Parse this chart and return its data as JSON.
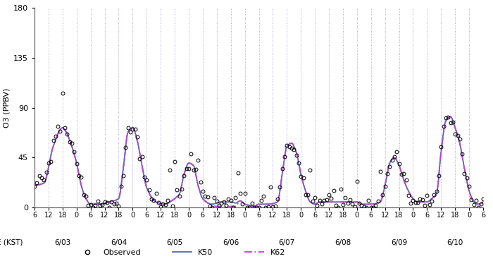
{
  "title": "",
  "ylabel": "O3 (PPBV)",
  "xlabel": "TIME (KST)",
  "ylim": [
    0,
    180
  ],
  "yticks": [
    0,
    45,
    90,
    135,
    180
  ],
  "background_color": "#ffffff",
  "grid_color": "#9999bb",
  "k50_color": "#5566bb",
  "k62_color": "#bb44cc",
  "obs_color": "#000000",
  "date_labels": [
    "6/03",
    "6/04",
    "6/05",
    "6/06",
    "6/07",
    "6/08",
    "6/09",
    "6/10"
  ],
  "total_hours": 192,
  "k50_knots_t": [
    0,
    4,
    8,
    12,
    13,
    16,
    18,
    20,
    22,
    24,
    28,
    32,
    36,
    38,
    40,
    42,
    44,
    46,
    48,
    52,
    56,
    58,
    60,
    62,
    64,
    66,
    68,
    70,
    72,
    76,
    78,
    80,
    82,
    84,
    86,
    88,
    90,
    92,
    94,
    96,
    100,
    104,
    106,
    108,
    110,
    112,
    114,
    116,
    118,
    120,
    122,
    124,
    126,
    128,
    130,
    132,
    134,
    136,
    138,
    140,
    144,
    148,
    150,
    152,
    154,
    156,
    158,
    160,
    162,
    164,
    168,
    170,
    172,
    174,
    176,
    178,
    180,
    182,
    184,
    186,
    188,
    190,
    192
  ],
  "k50_knots_v": [
    20,
    22,
    55,
    72,
    70,
    55,
    40,
    20,
    8,
    3,
    3,
    5,
    8,
    35,
    68,
    72,
    60,
    38,
    18,
    5,
    3,
    5,
    8,
    12,
    30,
    40,
    38,
    20,
    8,
    3,
    4,
    5,
    5,
    5,
    4,
    6,
    3,
    2,
    1,
    3,
    3,
    5,
    30,
    55,
    58,
    50,
    30,
    15,
    5,
    3,
    5,
    5,
    5,
    5,
    5,
    5,
    5,
    5,
    5,
    3,
    3,
    5,
    20,
    40,
    45,
    38,
    25,
    15,
    8,
    5,
    5,
    8,
    12,
    50,
    78,
    82,
    72,
    58,
    35,
    15,
    5,
    3,
    5
  ],
  "k62_knots_t": [
    0,
    4,
    8,
    12,
    13,
    16,
    18,
    20,
    22,
    24,
    28,
    32,
    36,
    38,
    40,
    42,
    44,
    46,
    48,
    52,
    56,
    58,
    60,
    62,
    64,
    66,
    68,
    70,
    72,
    76,
    78,
    80,
    82,
    84,
    86,
    88,
    90,
    92,
    94,
    96,
    100,
    104,
    106,
    108,
    110,
    112,
    114,
    116,
    118,
    120,
    122,
    124,
    126,
    128,
    130,
    132,
    134,
    136,
    138,
    140,
    144,
    148,
    150,
    152,
    154,
    156,
    158,
    160,
    162,
    164,
    168,
    170,
    172,
    174,
    176,
    178,
    180,
    182,
    184,
    186,
    188,
    190,
    192
  ],
  "k62_knots_v": [
    20,
    22,
    55,
    72,
    70,
    55,
    40,
    20,
    8,
    3,
    3,
    5,
    8,
    35,
    68,
    72,
    60,
    38,
    18,
    5,
    3,
    5,
    8,
    12,
    30,
    40,
    38,
    20,
    8,
    2,
    1,
    1,
    1,
    1,
    1,
    6,
    3,
    2,
    1,
    3,
    3,
    5,
    30,
    55,
    58,
    50,
    30,
    15,
    5,
    3,
    5,
    5,
    5,
    5,
    5,
    5,
    5,
    5,
    5,
    3,
    3,
    5,
    20,
    40,
    45,
    38,
    25,
    15,
    8,
    5,
    5,
    8,
    12,
    50,
    78,
    82,
    72,
    58,
    35,
    15,
    5,
    3,
    5
  ],
  "obs_t": [
    0,
    1,
    2,
    3,
    4,
    5,
    6,
    7,
    8,
    9,
    10,
    11,
    12,
    13,
    14,
    15,
    16,
    17,
    18,
    19,
    20,
    21,
    22,
    23,
    24,
    25,
    26,
    27,
    28,
    29,
    30,
    31,
    32,
    33,
    34,
    35,
    36,
    37,
    38,
    39,
    40,
    41,
    42,
    43,
    44,
    45,
    46,
    47,
    48,
    49,
    50,
    51,
    52,
    53,
    54,
    55,
    56,
    57,
    58,
    59,
    60,
    61,
    62,
    63,
    64,
    65,
    66,
    67,
    68,
    69,
    70,
    71,
    72,
    73,
    74,
    75,
    76,
    77,
    78,
    79,
    80,
    81,
    82,
    83,
    84,
    85,
    86,
    87,
    88,
    89,
    90,
    91,
    92,
    93,
    94,
    95,
    96,
    97,
    98,
    99,
    100,
    101,
    102,
    103,
    104,
    105,
    106,
    107,
    108,
    109,
    110,
    111,
    112,
    113,
    114,
    115,
    116,
    117,
    118,
    119,
    120,
    121,
    122,
    123,
    124,
    125,
    126,
    127,
    128,
    129,
    130,
    131,
    132,
    133,
    134,
    135,
    136,
    137,
    138,
    139,
    140,
    141,
    142,
    143,
    144,
    145,
    146,
    147,
    148,
    149,
    150,
    151,
    152,
    153,
    154,
    155,
    156,
    157,
    158,
    159,
    160,
    161,
    162,
    163,
    164,
    165,
    166,
    167,
    168,
    169,
    170,
    171,
    172,
    173,
    174,
    175,
    176,
    177,
    178,
    179,
    180,
    181,
    182,
    183,
    184,
    185,
    186,
    187,
    188,
    189,
    190,
    191,
    192
  ],
  "legend_labels": [
    "Observed",
    "K50",
    "K62"
  ]
}
